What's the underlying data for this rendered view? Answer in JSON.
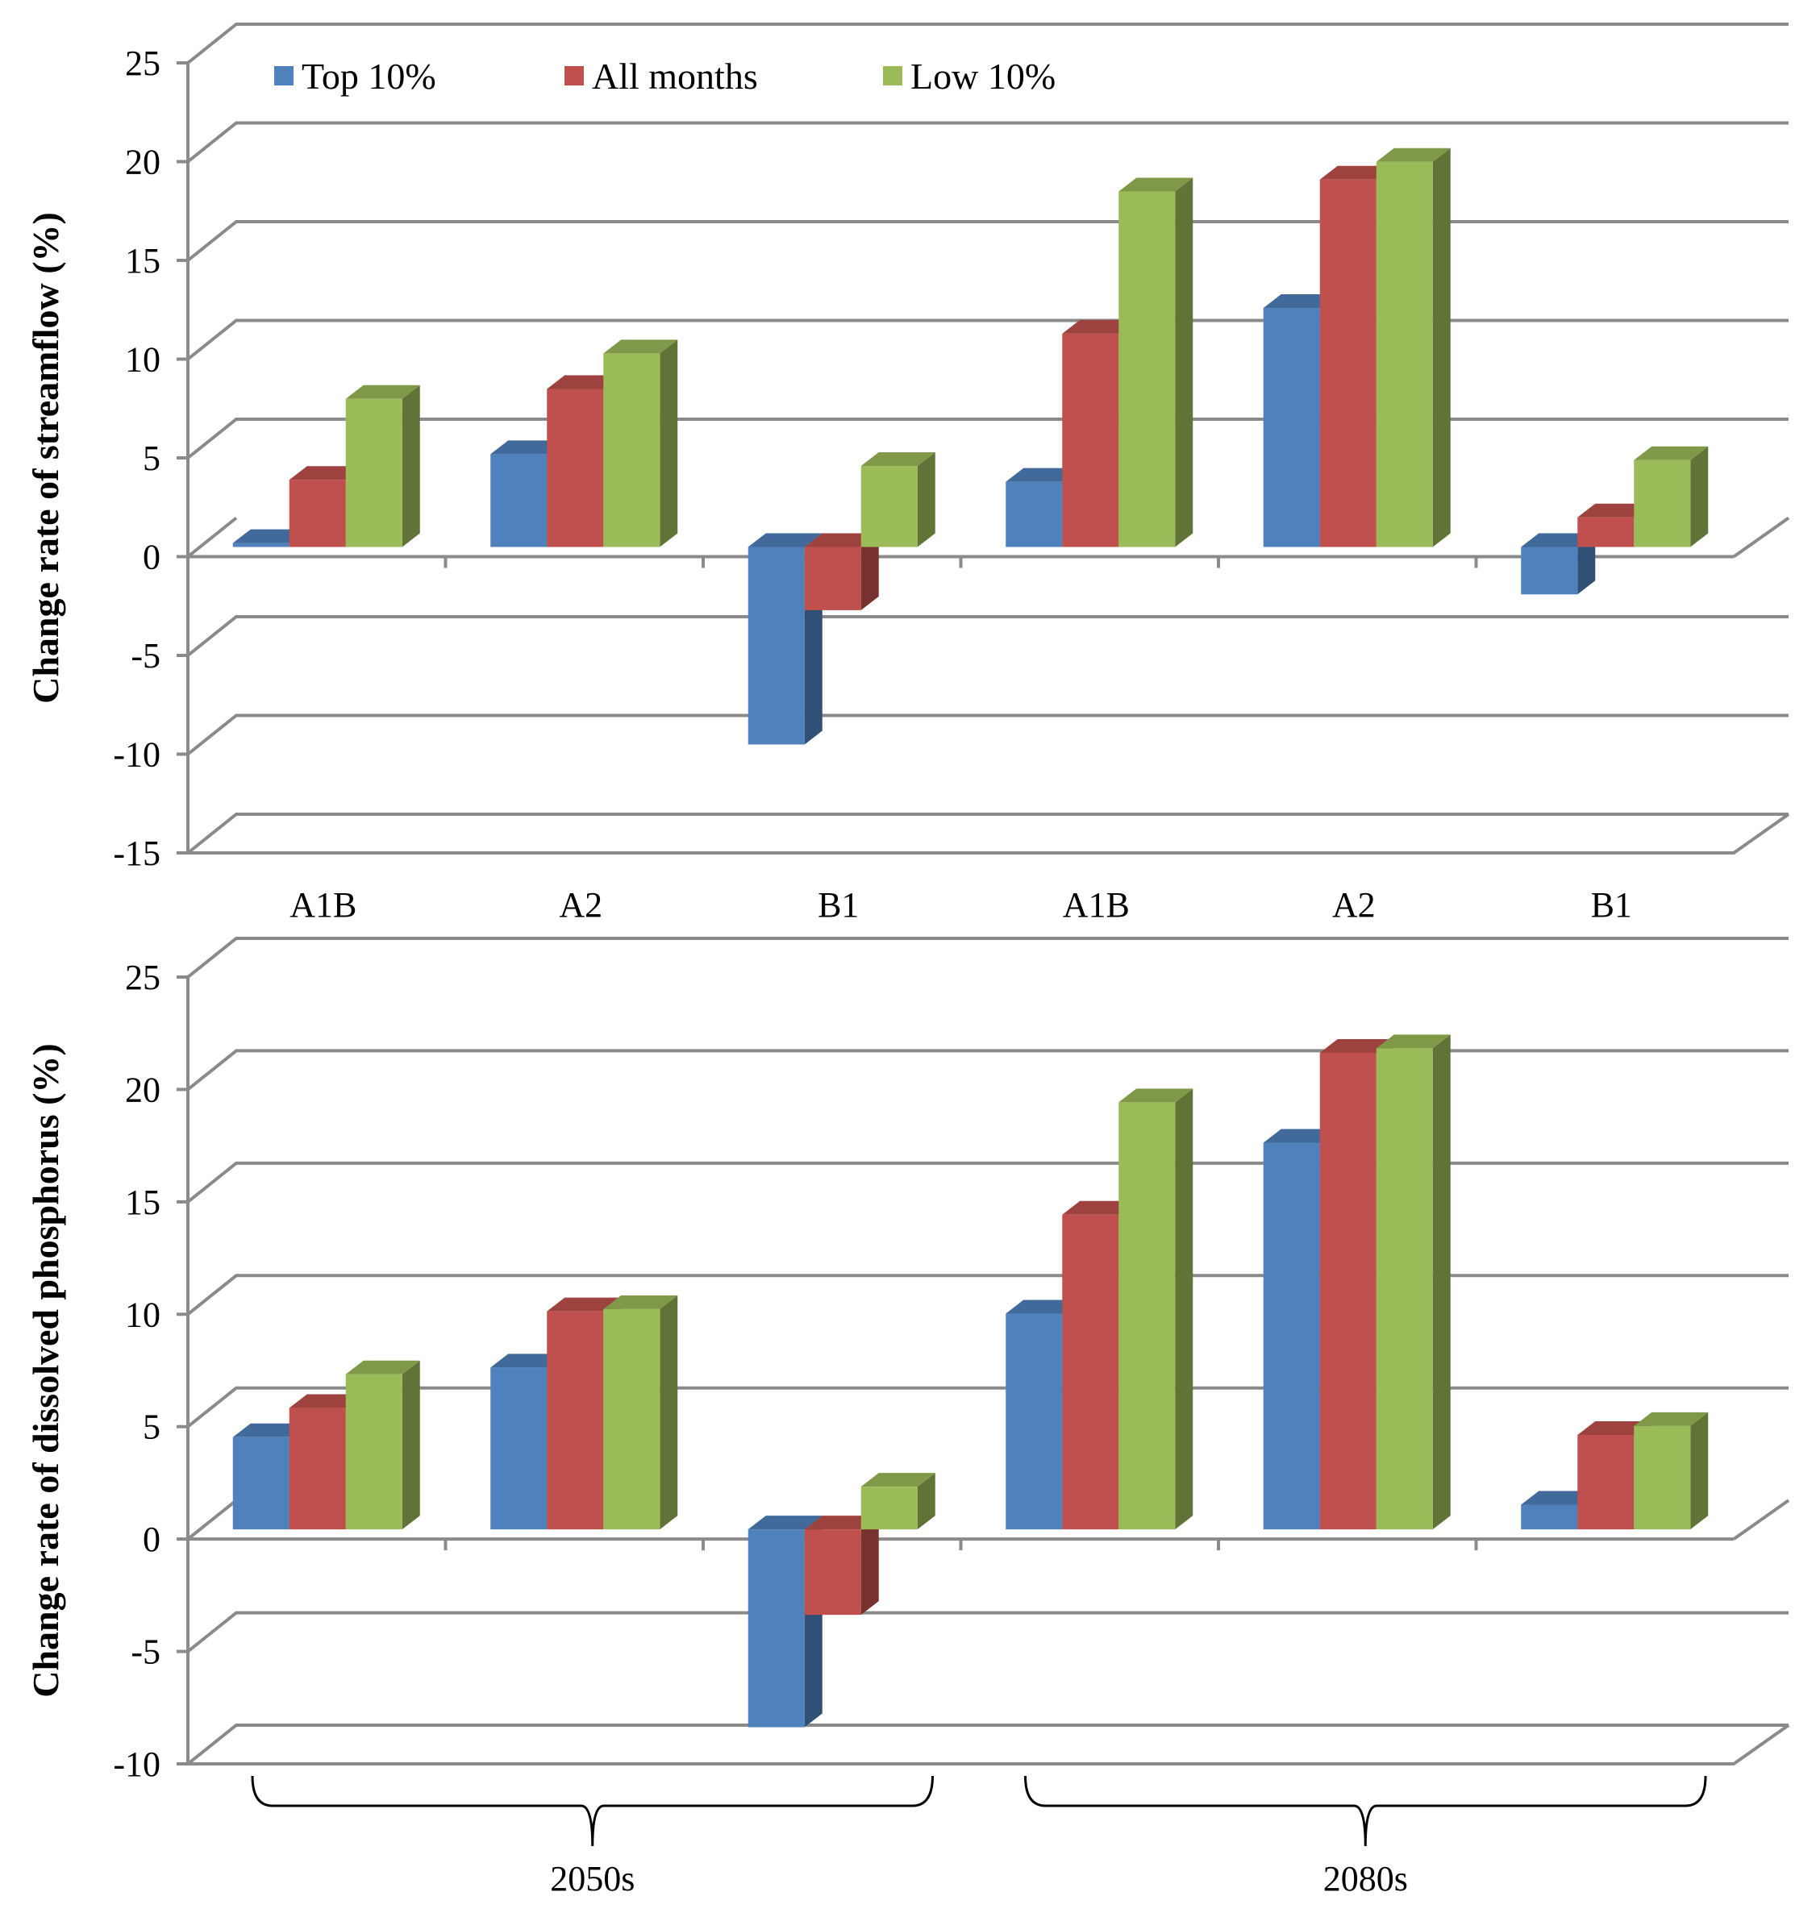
{
  "legend": [
    {
      "label": "Top 10%",
      "color": "#4F81BD"
    },
    {
      "label": "All months",
      "color": "#C0504D"
    },
    {
      "label": "Low 10%",
      "color": "#9BBB59"
    }
  ],
  "chart_data": [
    {
      "type": "bar",
      "title": "",
      "ylabel": "Change rate of streamflow (%)",
      "xlabel": "",
      "ylim": [
        -15,
        25
      ],
      "yticks": [
        25,
        20,
        15,
        10,
        5,
        0,
        -5,
        -10,
        -15
      ],
      "yticklabels": [
        "25",
        "20",
        "15",
        "10",
        "5",
        "0",
        "-5",
        "-10",
        "-15"
      ],
      "categories": [
        "A1B",
        "A2",
        "B1",
        "A1B",
        "A2",
        "B1"
      ],
      "series": [
        {
          "name": "Top 10%",
          "values": [
            0.2,
            4.7,
            -10.0,
            3.3,
            12.1,
            -2.4
          ]
        },
        {
          "name": "All months",
          "values": [
            3.4,
            8.0,
            -3.2,
            10.8,
            18.6,
            1.5
          ]
        },
        {
          "name": "Low 10%",
          "values": [
            7.5,
            9.8,
            4.1,
            18.0,
            19.5,
            4.4
          ]
        }
      ]
    },
    {
      "type": "bar",
      "title": "",
      "ylabel": "Change rate of dissolved phosphorus (%)",
      "xlabel": "",
      "ylim": [
        -10,
        25
      ],
      "yticks": [
        25,
        20,
        15,
        10,
        5,
        0,
        -5,
        -10
      ],
      "yticklabels": [
        "25",
        "20",
        "15",
        "10",
        "5",
        "0",
        "-5",
        "-10"
      ],
      "categories": [
        "A1B",
        "A2",
        "B1",
        "A1B",
        "A2",
        "B1"
      ],
      "groups": [
        {
          "label": "2050s",
          "from": 0,
          "to": 2
        },
        {
          "label": "2080s",
          "from": 3,
          "to": 5
        }
      ],
      "series": [
        {
          "name": "Top 10%",
          "values": [
            4.1,
            7.2,
            -8.8,
            9.6,
            17.2,
            1.1
          ]
        },
        {
          "name": "All months",
          "values": [
            5.4,
            9.7,
            -3.8,
            14.0,
            21.2,
            4.2
          ]
        },
        {
          "name": "Low 10%",
          "values": [
            6.9,
            9.8,
            1.9,
            19.0,
            21.4,
            4.6
          ]
        }
      ]
    }
  ]
}
